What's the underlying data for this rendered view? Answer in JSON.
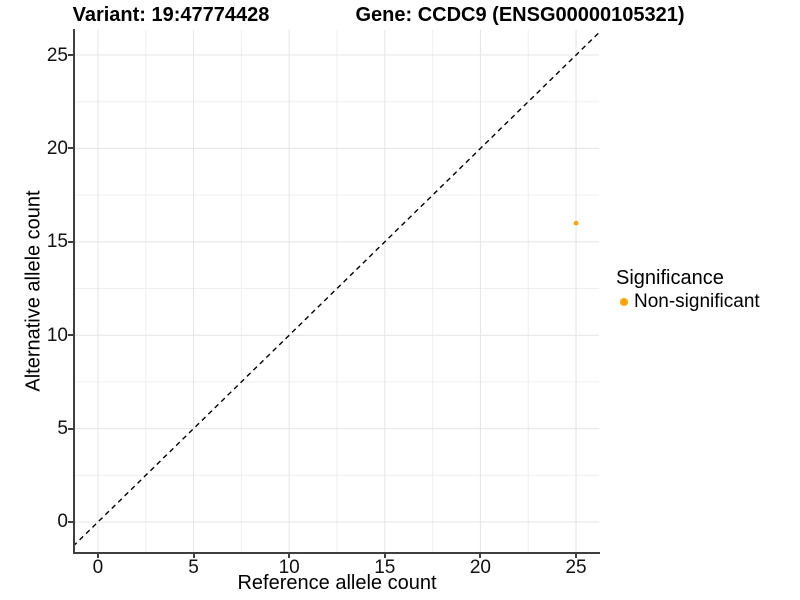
{
  "titles": {
    "variant": "Variant: 19:47774428",
    "gene": "Gene: CCDC9 (ENSG00000105321)"
  },
  "chart_data": {
    "type": "scatter",
    "xlabel": "Reference allele count",
    "ylabel": "Alternative allele count",
    "xlim": [
      -1.2,
      26.2
    ],
    "ylim": [
      -1.66,
      26.34
    ],
    "x_ticks": [
      0,
      5,
      10,
      15,
      20,
      25
    ],
    "y_ticks": [
      0,
      5,
      10,
      15,
      20,
      25
    ],
    "x_minor_ticks": [
      2.5,
      7.5,
      12.5,
      17.5,
      22.5
    ],
    "y_minor_ticks": [
      2.5,
      7.5,
      12.5,
      17.5,
      22.5
    ],
    "grid": true,
    "points": [
      {
        "x": 25,
        "y": 16,
        "series": "Non-significant"
      }
    ],
    "reference_line": {
      "slope": 1,
      "intercept": 0,
      "style": "dashed",
      "color": "#000000"
    },
    "legend": {
      "title": "Significance",
      "position": "right",
      "entries": [
        {
          "label": "Non-significant",
          "color": "#FFA500"
        }
      ]
    }
  },
  "colors": {
    "point": "#FFA500",
    "axis": "#3f3f3f",
    "grid_major": "#E4E4E4",
    "grid_minor": "#EFEFEF",
    "background": "#FFFFFF"
  }
}
